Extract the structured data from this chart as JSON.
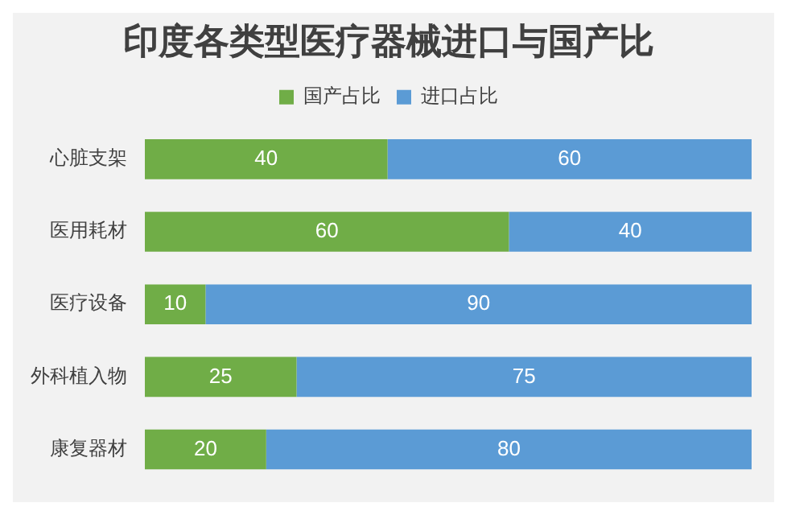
{
  "chart_data": {
    "type": "bar",
    "orientation": "horizontal",
    "stacked": true,
    "title": "印度各类型医疗器械进口与国产比",
    "categories": [
      "心脏支架",
      "医用耗材",
      "医疗设备",
      "外科植入物",
      "康复器材"
    ],
    "series": [
      {
        "name": "国产占比",
        "color": "#70ad47",
        "values": [
          40,
          60,
          10,
          25,
          20
        ]
      },
      {
        "name": "进口占比",
        "color": "#5b9bd5",
        "values": [
          60,
          40,
          90,
          75,
          80
        ]
      }
    ],
    "xlim": [
      0,
      100
    ],
    "tick_labels": "y",
    "data_labels": true,
    "legend": "top",
    "grid": false
  }
}
